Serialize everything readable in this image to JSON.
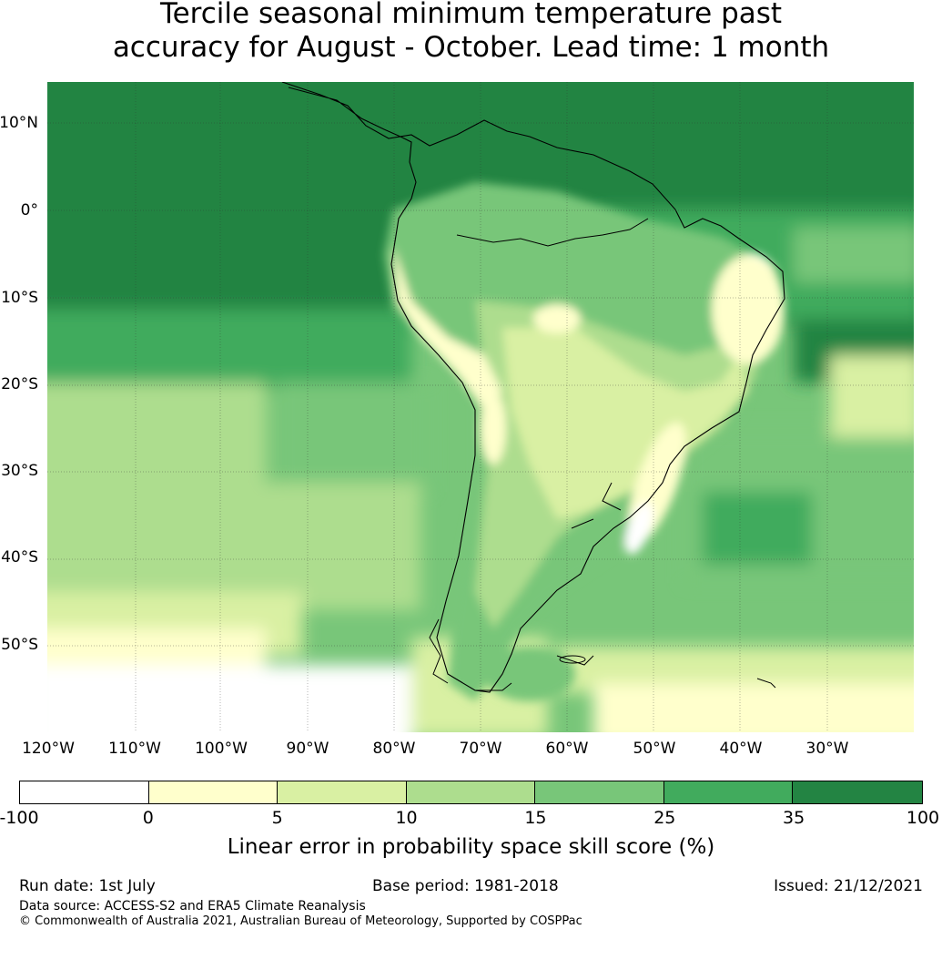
{
  "title_line1": "Tercile seasonal minimum temperature past",
  "title_line2": "accuracy for August - October. Lead time: 1 month",
  "lat_labels": [
    "10°N",
    "0°",
    "10°S",
    "20°S",
    "30°S",
    "40°S",
    "50°S"
  ],
  "lon_labels": [
    "120°W",
    "110°W",
    "100°W",
    "90°W",
    "80°W",
    "70°W",
    "60°W",
    "50°W",
    "40°W",
    "30°W"
  ],
  "colorbar": {
    "ticks": [
      "-100",
      "0",
      "5",
      "10",
      "15",
      "25",
      "35",
      "100"
    ],
    "colors": [
      "#ffffff",
      "#ffffcc",
      "#d9f0a3",
      "#addd8e",
      "#78c679",
      "#41ab5d",
      "#238443"
    ],
    "label": "Linear error in probability space skill score (%)"
  },
  "footer": {
    "run_date": "Run date: 1st July",
    "base_period": "Base period: 1981-2018",
    "issued": "Issued: 21/12/2021",
    "data_source": "Data source: ACCESS-S2 and ERA5 Climate Reanalysis",
    "copyright": "© Commonwealth of Australia 2021, Australian Bureau of Meteorology, Supported by COSPPac"
  }
}
